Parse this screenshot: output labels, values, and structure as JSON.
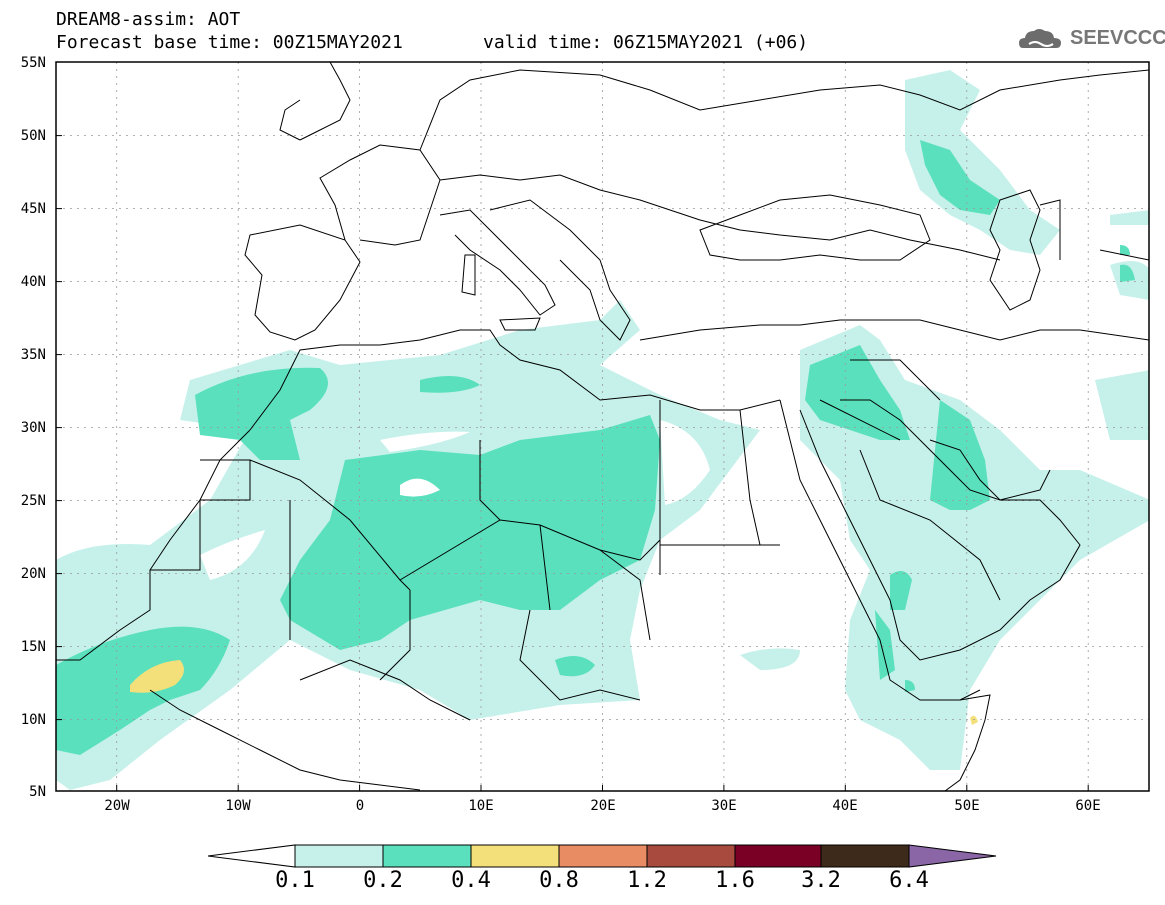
{
  "header": {
    "model_line": "DREAM8-assim: AOT",
    "base_time": "Forecast base time: 00Z15MAY2021",
    "valid_time": "valid time: 06Z15MAY2021 (+06)"
  },
  "logo": {
    "text": "SEEVCCC",
    "icon": "cloud-icon"
  },
  "map": {
    "lat_ticks": [
      "55N",
      "50N",
      "45N",
      "40N",
      "35N",
      "30N",
      "25N",
      "20N",
      "15N",
      "10N",
      "5N"
    ],
    "lon_ticks": [
      "20W",
      "10W",
      "0",
      "10E",
      "20E",
      "30E",
      "40E",
      "50E",
      "60E"
    ],
    "extent": {
      "lon_min": -25,
      "lon_max": 65,
      "lat_min": 5,
      "lat_max": 55
    },
    "grid": true
  },
  "colorbar": {
    "labels": [
      "0.1",
      "0.2",
      "0.4",
      "0.8",
      "1.2",
      "1.6",
      "3.2",
      "6.4"
    ],
    "colors": [
      "#ffffff",
      "#c6f1ea",
      "#5ae0bd",
      "#f4e07b",
      "#e88c63",
      "#a84a3d",
      "#7a0026",
      "#3e2a1a",
      "#8a66a6"
    ],
    "extend": "both"
  },
  "colors": {
    "aot_light": "#c6f1ea",
    "aot_medium": "#5ae0bd",
    "aot_high": "#f4e07b",
    "border": "#000000"
  }
}
